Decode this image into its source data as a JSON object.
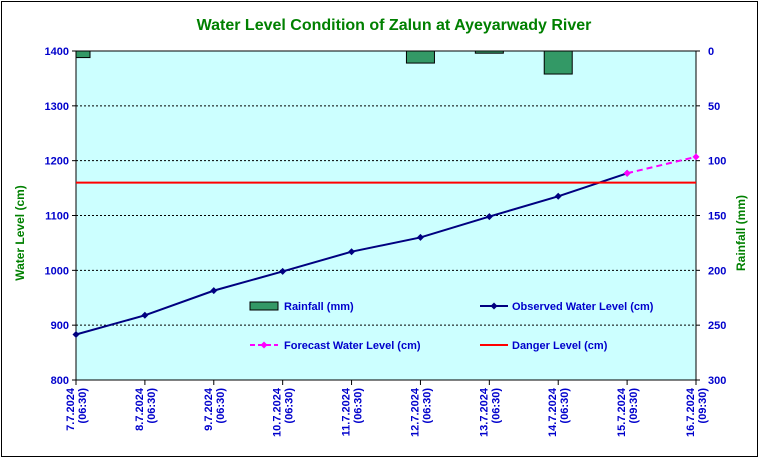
{
  "chart_data": {
    "type": "line",
    "title": "Water Level Condition of Zalun at Ayeyarwady River",
    "ylabel_left": "Water Level (cm)",
    "ylabel_right": "Rainfall (mm)",
    "categories": [
      [
        "7.7.2024",
        "(06:30)"
      ],
      [
        "8.7.2024",
        "(06:30)"
      ],
      [
        "9.7.2024",
        "(06:30)"
      ],
      [
        "10.7.2024",
        "(06:30)"
      ],
      [
        "11.7.2024",
        "(06:30)"
      ],
      [
        "12.7.2024",
        "(06:30)"
      ],
      [
        "13.7.2024",
        "(06:30)"
      ],
      [
        "14.7.2024",
        "(06:30)"
      ],
      [
        "15.7.2024",
        "(09:30)"
      ],
      [
        "16.7.2024",
        "(09:30)"
      ]
    ],
    "ylim_left": [
      800,
      1400
    ],
    "yticks_left": [
      "800",
      "900",
      "1000",
      "1100",
      "1200",
      "1300",
      "1400"
    ],
    "ylim_right": [
      300,
      0
    ],
    "yticks_right": [
      "300",
      "250",
      "200",
      "150",
      "100",
      "50",
      "0"
    ],
    "grid": true,
    "series": [
      {
        "name": "Observed Water Level (cm)",
        "kind": "line",
        "color": "#000080",
        "values": [
          883,
          918,
          963,
          998,
          1034,
          1060,
          1098,
          1135,
          1177,
          null
        ]
      },
      {
        "name": "Forecast Water Level (cm)",
        "kind": "line-dashed",
        "color": "#ff00ff",
        "values": [
          null,
          null,
          null,
          null,
          null,
          null,
          null,
          null,
          1177,
          1207
        ]
      },
      {
        "name": "Danger Level (cm)",
        "kind": "hline",
        "color": "#ff0000",
        "value": 1160
      },
      {
        "name": "Rainfall (mm)",
        "kind": "bar",
        "axis": "right",
        "color": "#339966",
        "values": [
          6,
          0,
          0,
          0,
          0,
          11,
          2,
          21,
          0,
          0
        ]
      }
    ],
    "legend": [
      {
        "name": "Rainfall (mm)",
        "kind": "bar",
        "color": "#339966"
      },
      {
        "name": "Observed Water Level (cm)",
        "kind": "line",
        "color": "#000080"
      },
      {
        "name": "Forecast Water Level (cm)",
        "kind": "line-dashed",
        "color": "#ff00ff"
      },
      {
        "name": "Danger Level (cm)",
        "kind": "hline",
        "color": "#ff0000"
      }
    ],
    "colors": {
      "plot_bg": "#ccffff",
      "title": "#008000",
      "axis_title": "#008000",
      "tick_left": "#0000cc",
      "tick_right": "#0000cc",
      "xtick": "#0000cc",
      "legend_text": "#0000cc"
    }
  }
}
